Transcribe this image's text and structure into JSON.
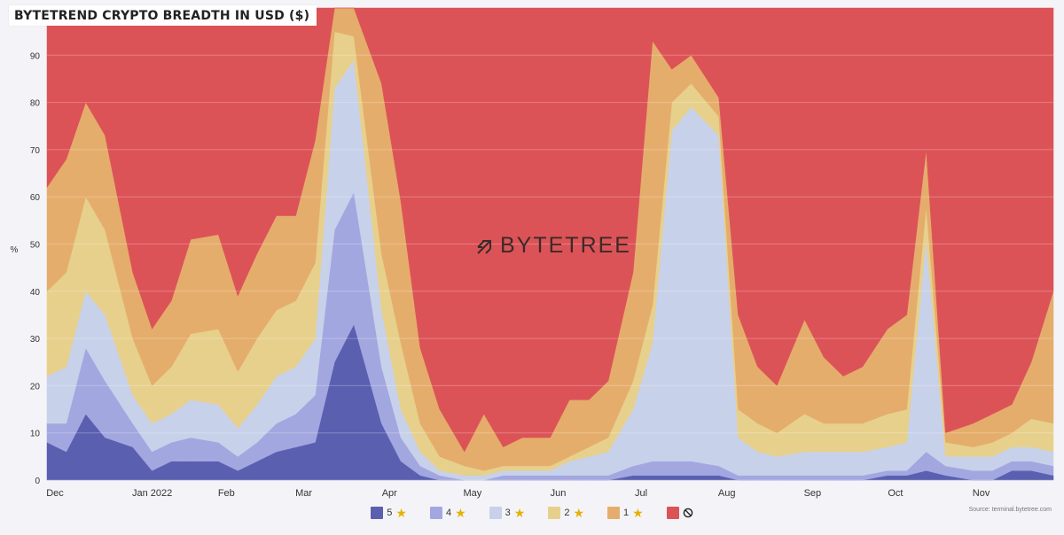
{
  "title": "BYTETREND CRYPTO BREADTH IN USD ($)",
  "watermark": "BYTETREE",
  "source": "Source:  terminal.bytetree.com",
  "ylabel": "%",
  "colors": {
    "s5": "#5b5fb0",
    "s4": "#a3a7e0",
    "s3": "#c8d1ea",
    "s2": "#e7d08c",
    "s1": "#e5ad6c",
    "none": "#dc5357",
    "star": "#e6b100"
  },
  "chart_data": {
    "type": "area",
    "stacked": true,
    "ylabel": "%",
    "ylim": [
      0,
      100
    ],
    "yticks": [
      0,
      10,
      20,
      30,
      40,
      50,
      60,
      70,
      80,
      90
    ],
    "xlim": [
      "2021-12-01",
      "2022-11-30"
    ],
    "xticks": [
      {
        "date": "2021-12-01",
        "label": "Dec"
      },
      {
        "date": "2022-01-01",
        "label": "Jan 2022"
      },
      {
        "date": "2022-02-01",
        "label": "Feb"
      },
      {
        "date": "2022-03-01",
        "label": "Mar"
      },
      {
        "date": "2022-04-01",
        "label": "Apr"
      },
      {
        "date": "2022-05-01",
        "label": "May"
      },
      {
        "date": "2022-06-01",
        "label": "Jun"
      },
      {
        "date": "2022-07-01",
        "label": "Jul"
      },
      {
        "date": "2022-08-01",
        "label": "Aug"
      },
      {
        "date": "2022-09-01",
        "label": "Sep"
      },
      {
        "date": "2022-10-01",
        "label": "Oct"
      },
      {
        "date": "2022-11-01",
        "label": "Nov"
      }
    ],
    "grid": true,
    "legend_position": "bottom",
    "x": [
      "2021-12-01",
      "2021-12-08",
      "2021-12-15",
      "2021-12-22",
      "2022-01-01",
      "2022-01-08",
      "2022-01-15",
      "2022-01-22",
      "2022-02-01",
      "2022-02-08",
      "2022-02-15",
      "2022-02-22",
      "2022-03-01",
      "2022-03-08",
      "2022-03-15",
      "2022-03-22",
      "2022-04-01",
      "2022-04-08",
      "2022-04-15",
      "2022-04-22",
      "2022-05-01",
      "2022-05-08",
      "2022-05-15",
      "2022-05-22",
      "2022-06-01",
      "2022-06-08",
      "2022-06-15",
      "2022-06-22",
      "2022-07-01",
      "2022-07-08",
      "2022-07-15",
      "2022-07-22",
      "2022-08-01",
      "2022-08-08",
      "2022-08-15",
      "2022-08-22",
      "2022-09-01",
      "2022-09-08",
      "2022-09-15",
      "2022-09-22",
      "2022-10-01",
      "2022-10-08",
      "2022-10-15",
      "2022-10-22",
      "2022-11-01",
      "2022-11-08",
      "2022-11-15",
      "2022-11-22",
      "2022-11-30"
    ],
    "series": [
      {
        "name": "5",
        "key": "s5",
        "values": [
          8,
          6,
          14,
          9,
          7,
          2,
          4,
          4,
          4,
          2,
          4,
          6,
          7,
          8,
          25,
          33,
          12,
          4,
          1,
          0,
          0,
          0,
          0,
          0,
          0,
          0,
          0,
          0,
          1,
          1,
          1,
          1,
          1,
          0,
          0,
          0,
          0,
          0,
          0,
          0,
          1,
          1,
          2,
          1,
          0,
          0,
          2,
          2,
          1
        ]
      },
      {
        "name": "4",
        "key": "s4",
        "values": [
          4,
          6,
          14,
          12,
          5,
          4,
          4,
          5,
          4,
          3,
          4,
          6,
          7,
          10,
          28,
          28,
          12,
          5,
          2,
          1,
          0,
          0,
          1,
          1,
          1,
          1,
          1,
          1,
          2,
          3,
          3,
          3,
          2,
          1,
          1,
          1,
          1,
          1,
          1,
          1,
          1,
          1,
          4,
          2,
          2,
          2,
          2,
          2,
          2
        ]
      },
      {
        "name": "3",
        "key": "s3",
        "values": [
          10,
          12,
          12,
          14,
          6,
          6,
          6,
          8,
          8,
          6,
          8,
          10,
          10,
          12,
          30,
          28,
          12,
          6,
          3,
          1,
          1,
          1,
          1,
          1,
          1,
          3,
          4,
          5,
          12,
          25,
          70,
          75,
          70,
          8,
          5,
          4,
          5,
          5,
          5,
          5,
          5,
          6,
          45,
          2,
          3,
          3,
          3,
          3,
          3
        ]
      },
      {
        "name": "2",
        "key": "s2",
        "values": [
          18,
          20,
          20,
          18,
          12,
          8,
          10,
          14,
          16,
          12,
          14,
          14,
          14,
          16,
          12,
          5,
          12,
          14,
          6,
          3,
          2,
          1,
          1,
          1,
          1,
          1,
          2,
          3,
          6,
          8,
          6,
          5,
          4,
          6,
          6,
          5,
          8,
          6,
          6,
          6,
          7,
          7,
          7,
          3,
          2,
          3,
          3,
          6,
          6
        ]
      },
      {
        "name": "1",
        "key": "s1",
        "values": [
          22,
          24,
          20,
          20,
          14,
          12,
          14,
          20,
          20,
          16,
          18,
          20,
          18,
          26,
          5,
          6,
          36,
          30,
          16,
          10,
          3,
          12,
          4,
          6,
          6,
          12,
          10,
          12,
          23,
          56,
          7,
          6,
          4,
          20,
          12,
          10,
          20,
          14,
          10,
          12,
          18,
          20,
          12,
          2,
          5,
          6,
          6,
          12,
          28
        ]
      },
      {
        "name": "none",
        "key": "none",
        "values": [
          38,
          32,
          20,
          27,
          56,
          68,
          62,
          49,
          48,
          61,
          52,
          44,
          44,
          28,
          0,
          0,
          16,
          41,
          72,
          85,
          94,
          86,
          93,
          91,
          91,
          83,
          83,
          79,
          56,
          7,
          13,
          10,
          19,
          65,
          76,
          80,
          66,
          74,
          78,
          76,
          68,
          65,
          30,
          90,
          88,
          86,
          84,
          74,
          60
        ]
      }
    ],
    "legend": [
      {
        "key": "s5",
        "label": "5",
        "icon": "star-icon"
      },
      {
        "key": "s4",
        "label": "4",
        "icon": "star-icon"
      },
      {
        "key": "s3",
        "label": "3",
        "icon": "star-icon"
      },
      {
        "key": "s2",
        "label": "2",
        "icon": "star-icon"
      },
      {
        "key": "s1",
        "label": "1",
        "icon": "star-icon"
      },
      {
        "key": "none",
        "label": "",
        "icon": "no-entry-icon"
      }
    ]
  }
}
